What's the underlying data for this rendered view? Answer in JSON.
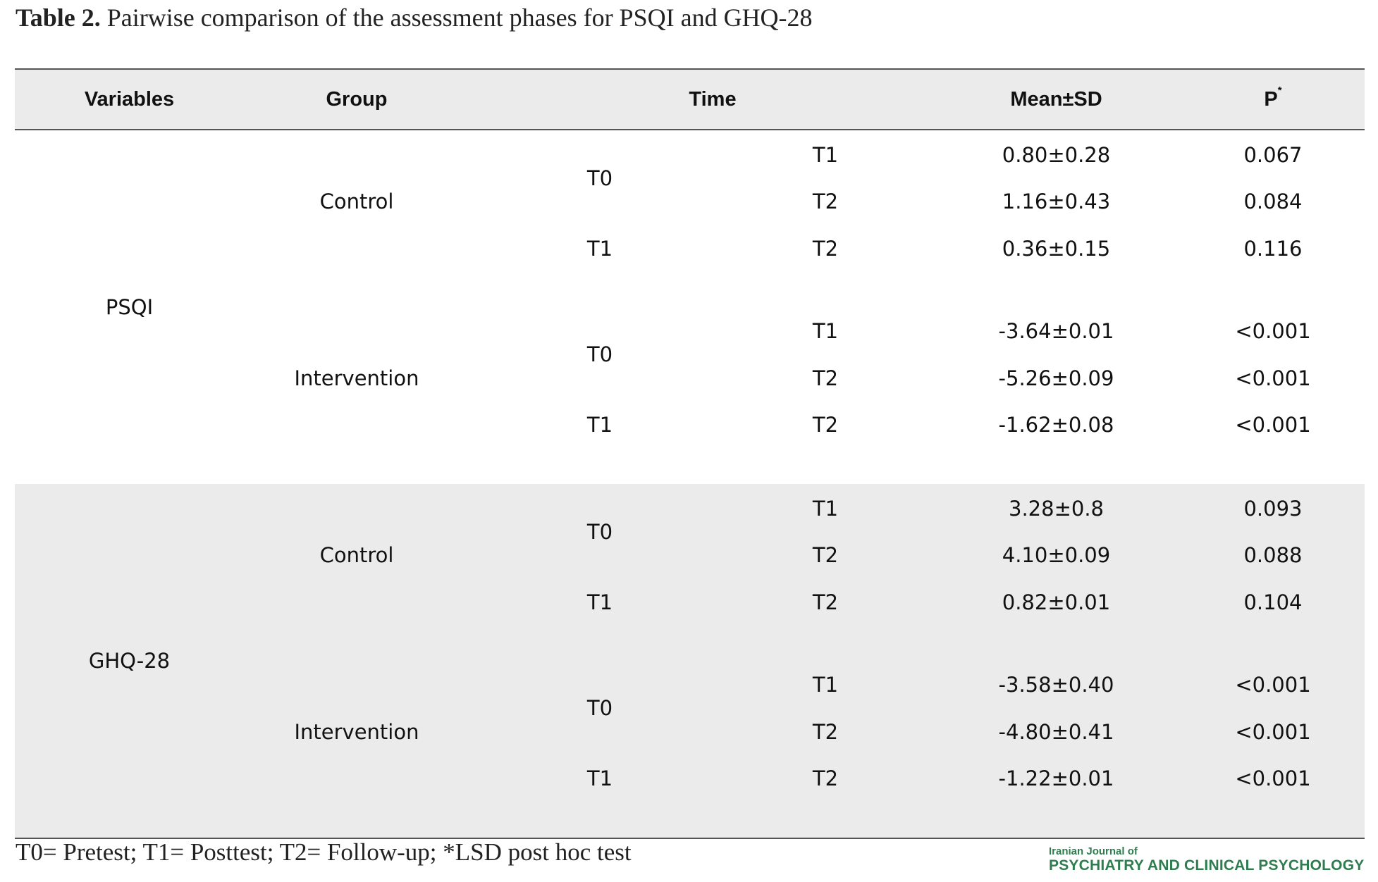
{
  "caption": {
    "label": "Table 2.",
    "text": " Pairwise comparison of the assessment phases for PSQI and GHQ-28"
  },
  "table": {
    "headers": {
      "variables": "Variables",
      "group": "Group",
      "time": "Time",
      "mean_sd": "Mean±SD",
      "p": "P",
      "p_sup": "*"
    },
    "blocks": [
      {
        "variable": "PSQI",
        "groups": [
          {
            "name": "Control",
            "from_a": "T0",
            "from_b": "T1",
            "rows": [
              {
                "to": "T1",
                "mean_sd": "0.80±0.28",
                "p": "0.067"
              },
              {
                "to": "T2",
                "mean_sd": "1.16±0.43",
                "p": "0.084"
              },
              {
                "to": "T2",
                "mean_sd": "0.36±0.15",
                "p": "0.116"
              }
            ]
          },
          {
            "name": "Intervention",
            "from_a": "T0",
            "from_b": "T1",
            "rows": [
              {
                "to": "T1",
                "mean_sd": "-3.64±0.01",
                "p": "<0.001"
              },
              {
                "to": "T2",
                "mean_sd": "-5.26±0.09",
                "p": "<0.001"
              },
              {
                "to": "T2",
                "mean_sd": "-1.62±0.08",
                "p": "<0.001"
              }
            ]
          }
        ]
      },
      {
        "variable": "GHQ-28",
        "groups": [
          {
            "name": "Control",
            "from_a": "T0",
            "from_b": "T1",
            "rows": [
              {
                "to": "T1",
                "mean_sd": "3.28±0.8",
                "p": "0.093"
              },
              {
                "to": "T2",
                "mean_sd": "4.10±0.09",
                "p": "0.088"
              },
              {
                "to": "T2",
                "mean_sd": "0.82±0.01",
                "p": "0.104"
              }
            ]
          },
          {
            "name": "Intervention",
            "from_a": "T0",
            "from_b": "T1",
            "rows": [
              {
                "to": "T1",
                "mean_sd": "-3.58±0.40",
                "p": "<0.001"
              },
              {
                "to": "T2",
                "mean_sd": "-4.80±0.41",
                "p": "<0.001"
              },
              {
                "to": "T2",
                "mean_sd": "-1.22±0.01",
                "p": "<0.001"
              }
            ]
          }
        ]
      }
    ]
  },
  "footnote": "T0= Pretest; T1= Posttest; T2= Follow-up; *LSD post hoc test",
  "brand": {
    "line1": "Iranian Journal of",
    "line2": "PSYCHIATRY AND CLINICAL PSYCHOLOGY",
    "color": "#2e7d4f"
  }
}
